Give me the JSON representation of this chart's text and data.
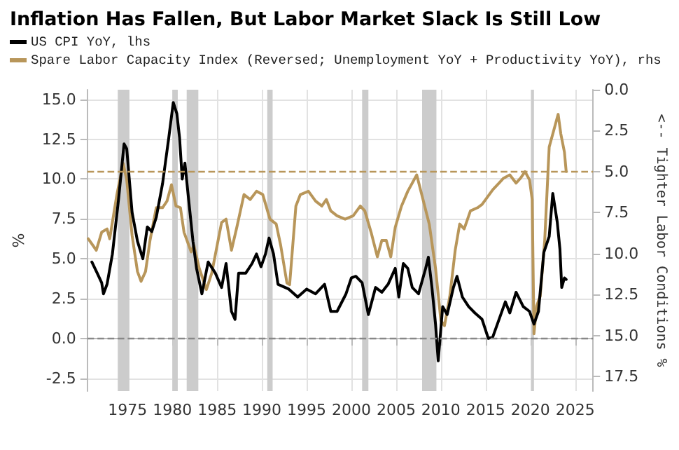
{
  "chart_data": {
    "type": "line",
    "title": "Inflation Has Fallen, But Labor Market Slack Is Still Low",
    "ylabel": "%",
    "y2label": "<-- Tighter Labor Conditions %",
    "xlim": [
      1970.5,
      2027
    ],
    "xticks": [
      1975,
      1980,
      1985,
      1990,
      1995,
      2000,
      2005,
      2010,
      2015,
      2020,
      2025
    ],
    "ylim": [
      -3.3,
      15.6
    ],
    "yticks": [
      {
        "value": -2.5,
        "label": "-2.5"
      },
      {
        "value": 0,
        "label": "0.0"
      },
      {
        "value": 2.5,
        "label": "2.5"
      },
      {
        "value": 5,
        "label": "5.0"
      },
      {
        "value": 7.5,
        "label": "7.5"
      },
      {
        "value": 10,
        "label": "10.0"
      },
      {
        "value": 12.5,
        "label": "12.5"
      },
      {
        "value": 15,
        "label": "15.0"
      }
    ],
    "y2lim": [
      18.4,
      0
    ],
    "y2ticks": [
      {
        "value": 0,
        "label": "0.0"
      },
      {
        "value": 2.5,
        "label": "2.5"
      },
      {
        "value": 5,
        "label": "5.0"
      },
      {
        "value": 7.5,
        "label": "7.5"
      },
      {
        "value": 10,
        "label": "10.0"
      },
      {
        "value": 12.5,
        "label": "12.5"
      },
      {
        "value": 15,
        "label": "15.0"
      },
      {
        "value": 17.5,
        "label": "17.5"
      }
    ],
    "grid": true,
    "legend": "top left",
    "marker": "none",
    "line_style": "solid",
    "series": [
      {
        "name": "US CPI YoY, lhs",
        "color": "#000000",
        "x": [
          1971.0,
          1971.6,
          1972.1,
          1972.3,
          1972.7,
          1973.3,
          1974.0,
          1974.6,
          1974.9,
          1975.5,
          1976.1,
          1976.7,
          1977.2,
          1977.7,
          1978.2,
          1978.9,
          1979.6,
          1980.1,
          1980.5,
          1980.8,
          1981.1,
          1981.4,
          1981.8,
          1982.3,
          1982.7,
          1983.3,
          1984.0,
          1984.8,
          1985.5,
          1986.0,
          1986.6,
          1987.0,
          1987.4,
          1988.2,
          1988.9,
          1989.4,
          1989.9,
          1990.4,
          1990.8,
          1991.3,
          1991.8,
          1993.0,
          1994.0,
          1995.0,
          1996.0,
          1997.0,
          1997.7,
          1998.4,
          1999.4,
          2000.0,
          2000.5,
          2001.2,
          2001.9,
          2002.7,
          2003.4,
          2004.1,
          2004.9,
          2005.3,
          2005.8,
          2006.3,
          2006.8,
          2007.5,
          2008.3,
          2008.6,
          2009.0,
          2009.4,
          2009.7,
          2010.2,
          2010.7,
          2011.4,
          2011.8,
          2012.4,
          2013.1,
          2013.8,
          2014.6,
          2015.3,
          2015.8,
          2016.5,
          2017.2,
          2017.7,
          2018.4,
          2019.2,
          2019.9,
          2020.4,
          2020.9,
          2021.5,
          2022.1,
          2022.5,
          2023.0,
          2023.3,
          2023.5,
          2023.8,
          2024.0
        ],
        "values": [
          4.8,
          4.1,
          3.5,
          2.8,
          3.4,
          5.3,
          8.8,
          12.2,
          11.9,
          7.9,
          6.1,
          5.0,
          7.0,
          6.7,
          7.6,
          9.7,
          12.6,
          14.8,
          14.1,
          12.6,
          10.0,
          11.0,
          8.8,
          6.1,
          4.4,
          2.8,
          4.8,
          4.1,
          3.2,
          4.7,
          1.7,
          1.2,
          4.1,
          4.1,
          4.7,
          5.3,
          4.5,
          5.3,
          6.3,
          5.3,
          3.4,
          3.1,
          2.6,
          3.1,
          2.8,
          3.4,
          1.7,
          1.7,
          2.8,
          3.8,
          3.9,
          3.5,
          1.5,
          3.2,
          2.9,
          3.4,
          4.4,
          2.6,
          4.7,
          4.4,
          3.2,
          2.8,
          4.4,
          5.1,
          3.2,
          0.9,
          -1.4,
          2.0,
          1.5,
          3.2,
          3.9,
          2.6,
          2.0,
          1.6,
          1.2,
          0.0,
          0.1,
          1.2,
          2.3,
          1.6,
          2.9,
          2.0,
          1.7,
          0.9,
          1.7,
          5.4,
          6.4,
          9.1,
          7.3,
          5.6,
          3.2,
          3.8,
          3.7
        ]
      },
      {
        "name": "Spare Labor Capacity Index (Reversed; Unemployment YoY + Productivity YoY), rhs",
        "color": "#b8965a",
        "axis": "y2",
        "x": [
          1970.6,
          1971.5,
          1972.1,
          1972.7,
          1973.0,
          1973.8,
          1974.5,
          1974.9,
          1975.5,
          1976.1,
          1976.5,
          1977.0,
          1977.5,
          1978.2,
          1978.9,
          1979.4,
          1979.9,
          1980.4,
          1980.9,
          1981.3,
          1982.1,
          1982.4,
          1983.0,
          1983.8,
          1984.4,
          1985.0,
          1985.5,
          1986.0,
          1986.6,
          1987.2,
          1988.0,
          1988.7,
          1989.4,
          1990.1,
          1990.9,
          1991.6,
          1992.1,
          1992.8,
          1993.1,
          1993.8,
          1994.3,
          1995.2,
          1996.0,
          1996.7,
          1997.2,
          1997.7,
          1998.4,
          1999.3,
          2000.2,
          2001.0,
          2001.5,
          2002.2,
          2002.9,
          2003.4,
          2003.9,
          2004.4,
          2004.9,
          2005.6,
          2006.3,
          2007.3,
          2008.0,
          2008.7,
          2009.4,
          2010.0,
          2010.4,
          2011.0,
          2011.6,
          2012.1,
          2012.6,
          2013.3,
          2014.1,
          2014.6,
          2015.0,
          2015.8,
          2016.5,
          2017.0,
          2017.7,
          2018.4,
          2018.9,
          2019.4,
          2019.9,
          2020.2,
          2020.4,
          2020.7,
          2021.1,
          2021.6,
          2022.1,
          2022.6,
          2023.1,
          2023.4,
          2023.8,
          2024.0
        ],
        "values": [
          9.1,
          9.8,
          8.7,
          8.5,
          9.1,
          6.4,
          4.5,
          5.5,
          8.9,
          11.1,
          11.7,
          11.1,
          9.2,
          7.2,
          7.2,
          6.8,
          5.8,
          7.1,
          7.2,
          8.7,
          9.9,
          9.5,
          10.9,
          12.2,
          11.2,
          9.5,
          8.1,
          7.9,
          9.8,
          8.4,
          6.4,
          6.7,
          6.2,
          6.4,
          7.9,
          8.2,
          9.5,
          11.8,
          11.9,
          7.1,
          6.4,
          6.2,
          6.8,
          7.1,
          6.7,
          7.4,
          7.7,
          7.9,
          7.7,
          7.1,
          7.4,
          8.7,
          10.2,
          9.2,
          9.2,
          10.2,
          8.4,
          7.1,
          6.2,
          5.2,
          6.7,
          8.2,
          10.9,
          14.1,
          14.4,
          12.6,
          9.8,
          8.2,
          8.5,
          7.4,
          7.2,
          7.0,
          6.7,
          6.1,
          5.7,
          5.4,
          5.2,
          5.7,
          5.4,
          5.0,
          5.5,
          6.7,
          14.9,
          13.2,
          12.6,
          9.2,
          3.5,
          2.5,
          1.5,
          2.7,
          3.8,
          5.0
        ]
      }
    ],
    "ref_lines": [
      {
        "axis": "y2",
        "value": 5.0,
        "color": "#b8965a",
        "line_style": "dashed"
      },
      {
        "axis": "y",
        "value": 0,
        "color": "#888888",
        "line_style": "dashed"
      }
    ],
    "bands": [
      {
        "axis": "x",
        "from": 1973.9,
        "to": 1975.2,
        "color": "#cccccc"
      },
      {
        "axis": "x",
        "from": 1980.0,
        "to": 1980.6,
        "color": "#cccccc"
      },
      {
        "axis": "x",
        "from": 1981.6,
        "to": 1982.9,
        "color": "#cccccc"
      },
      {
        "axis": "x",
        "from": 1990.6,
        "to": 1991.2,
        "color": "#cccccc"
      },
      {
        "axis": "x",
        "from": 2001.2,
        "to": 2001.9,
        "color": "#cccccc"
      },
      {
        "axis": "x",
        "from": 2007.9,
        "to": 2009.5,
        "color": "#cccccc"
      },
      {
        "axis": "x",
        "from": 2020.1,
        "to": 2020.4,
        "color": "#cccccc"
      }
    ]
  }
}
